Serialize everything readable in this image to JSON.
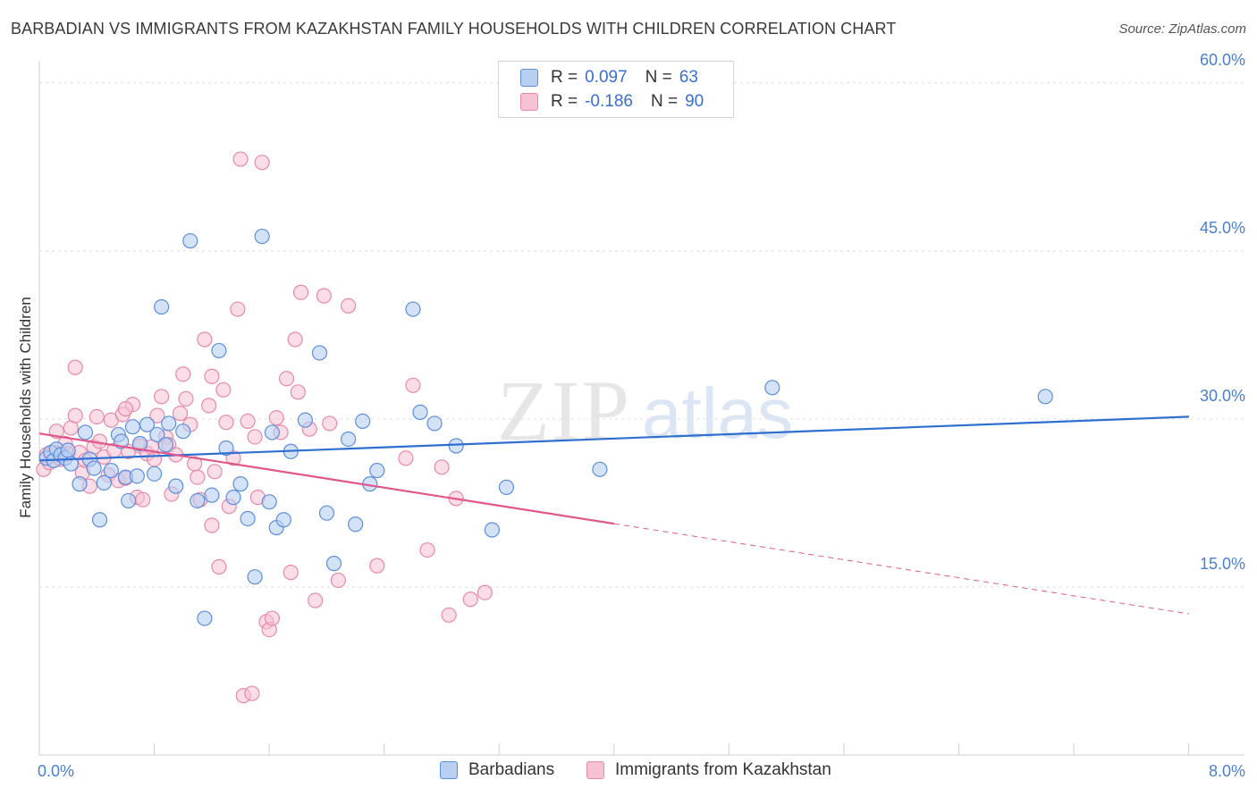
{
  "title": "BARBADIAN VS IMMIGRANTS FROM KAZAKHSTAN FAMILY HOUSEHOLDS WITH CHILDREN CORRELATION CHART",
  "source": "Source: ZipAtlas.com",
  "watermark": {
    "zip": "ZIP",
    "atlas": "atlas"
  },
  "legend": {
    "barbadian": {
      "r_label": "R = ",
      "r_value": "0.097",
      "n_label": "N = ",
      "n_value": "63"
    },
    "kazakhstan": {
      "r_label": "R = ",
      "r_value": "-0.186",
      "n_label": "N = ",
      "n_value": "90"
    }
  },
  "chart_data": {
    "type": "scatter",
    "title": "BARBADIAN VS IMMIGRANTS FROM KAZAKHSTAN FAMILY HOUSEHOLDS WITH CHILDREN CORRELATION CHART",
    "xlabel": "",
    "ylabel": "Family Households with Children",
    "xlim": [
      0,
      8
    ],
    "ylim": [
      0,
      61.5
    ],
    "x_tick_labels": [
      "0.0%",
      "8.0%"
    ],
    "y_ticks": [
      15,
      30,
      45,
      60
    ],
    "y_tick_labels": [
      "15.0%",
      "30.0%",
      "45.0%",
      "60.0%"
    ],
    "grid": true,
    "colors": {
      "barbadian_fill": "#b8cff2",
      "barbadian_stroke": "#5b8fdc",
      "barbadian_line": "#2f6fd0",
      "kazakhstan_fill": "#f6c1d3",
      "kazakhstan_stroke": "#e889aa",
      "kazakhstan_line": "#e0588a"
    },
    "series": [
      {
        "name": "Barbadians",
        "trend": {
          "x": [
            0,
            8
          ],
          "y": [
            26.3,
            30.2
          ],
          "dashed_from": null
        },
        "points": [
          [
            0.05,
            26.5
          ],
          [
            0.08,
            27.0
          ],
          [
            0.1,
            26.3
          ],
          [
            0.12,
            27.3
          ],
          [
            0.15,
            26.8
          ],
          [
            0.18,
            26.5
          ],
          [
            0.2,
            27.2
          ],
          [
            0.22,
            26.0
          ],
          [
            0.28,
            24.2
          ],
          [
            0.32,
            28.8
          ],
          [
            0.35,
            26.4
          ],
          [
            0.38,
            25.6
          ],
          [
            0.42,
            21.0
          ],
          [
            0.45,
            24.3
          ],
          [
            0.5,
            25.4
          ],
          [
            0.55,
            28.6
          ],
          [
            0.57,
            28.0
          ],
          [
            0.6,
            24.8
          ],
          [
            0.62,
            22.7
          ],
          [
            0.65,
            29.3
          ],
          [
            0.68,
            24.9
          ],
          [
            0.7,
            27.8
          ],
          [
            0.75,
            29.5
          ],
          [
            0.8,
            25.1
          ],
          [
            0.82,
            28.6
          ],
          [
            0.85,
            40.0
          ],
          [
            0.88,
            27.7
          ],
          [
            0.9,
            29.6
          ],
          [
            0.95,
            24.0
          ],
          [
            1.0,
            28.9
          ],
          [
            1.05,
            45.9
          ],
          [
            1.1,
            22.7
          ],
          [
            1.15,
            12.2
          ],
          [
            1.2,
            23.2
          ],
          [
            1.25,
            36.1
          ],
          [
            1.3,
            27.4
          ],
          [
            1.35,
            23.0
          ],
          [
            1.4,
            24.2
          ],
          [
            1.45,
            21.1
          ],
          [
            1.5,
            15.9
          ],
          [
            1.55,
            46.3
          ],
          [
            1.6,
            22.6
          ],
          [
            1.62,
            28.8
          ],
          [
            1.65,
            20.3
          ],
          [
            1.7,
            21.0
          ],
          [
            1.75,
            27.1
          ],
          [
            1.85,
            29.9
          ],
          [
            1.95,
            35.9
          ],
          [
            2.0,
            21.6
          ],
          [
            2.05,
            17.1
          ],
          [
            2.15,
            28.2
          ],
          [
            2.2,
            20.6
          ],
          [
            2.25,
            29.8
          ],
          [
            2.3,
            24.2
          ],
          [
            2.35,
            25.4
          ],
          [
            2.6,
            39.8
          ],
          [
            2.65,
            30.6
          ],
          [
            2.75,
            29.6
          ],
          [
            2.9,
            27.6
          ],
          [
            3.15,
            20.1
          ],
          [
            3.25,
            23.9
          ],
          [
            3.9,
            25.5
          ],
          [
            5.1,
            32.8
          ],
          [
            7.0,
            32.0
          ]
        ]
      },
      {
        "name": "Immigrants from Kazakhstan",
        "trend": {
          "x": [
            0,
            8
          ],
          "y": [
            28.7,
            12.6
          ],
          "dashed_from": 4.0
        },
        "points": [
          [
            0.03,
            25.5
          ],
          [
            0.05,
            26.8
          ],
          [
            0.07,
            26.1
          ],
          [
            0.1,
            27.0
          ],
          [
            0.12,
            28.9
          ],
          [
            0.15,
            26.4
          ],
          [
            0.18,
            27.8
          ],
          [
            0.2,
            26.9
          ],
          [
            0.22,
            29.2
          ],
          [
            0.25,
            30.3
          ],
          [
            0.28,
            27.0
          ],
          [
            0.3,
            25.2
          ],
          [
            0.32,
            26.3
          ],
          [
            0.35,
            24.0
          ],
          [
            0.38,
            27.5
          ],
          [
            0.4,
            30.2
          ],
          [
            0.42,
            28.0
          ],
          [
            0.45,
            26.6
          ],
          [
            0.48,
            25.0
          ],
          [
            0.5,
            29.9
          ],
          [
            0.52,
            27.2
          ],
          [
            0.55,
            24.5
          ],
          [
            0.58,
            30.4
          ],
          [
            0.6,
            24.7
          ],
          [
            0.62,
            27.1
          ],
          [
            0.65,
            31.3
          ],
          [
            0.68,
            23.0
          ],
          [
            0.7,
            27.6
          ],
          [
            0.72,
            22.8
          ],
          [
            0.75,
            26.9
          ],
          [
            0.78,
            27.5
          ],
          [
            0.8,
            26.4
          ],
          [
            0.82,
            30.3
          ],
          [
            0.85,
            32.0
          ],
          [
            0.88,
            28.4
          ],
          [
            0.9,
            27.7
          ],
          [
            0.92,
            23.3
          ],
          [
            0.95,
            26.8
          ],
          [
            0.98,
            30.5
          ],
          [
            1.0,
            34.0
          ],
          [
            1.02,
            31.8
          ],
          [
            1.05,
            29.5
          ],
          [
            1.08,
            26.0
          ],
          [
            1.1,
            24.8
          ],
          [
            1.12,
            22.8
          ],
          [
            1.15,
            37.1
          ],
          [
            1.18,
            31.2
          ],
          [
            1.2,
            20.5
          ],
          [
            1.22,
            25.3
          ],
          [
            1.25,
            16.8
          ],
          [
            1.28,
            32.6
          ],
          [
            1.3,
            29.7
          ],
          [
            1.32,
            22.2
          ],
          [
            1.35,
            26.5
          ],
          [
            1.38,
            39.8
          ],
          [
            1.4,
            53.2
          ],
          [
            1.42,
            5.3
          ],
          [
            1.45,
            29.8
          ],
          [
            1.48,
            5.5
          ],
          [
            1.5,
            28.4
          ],
          [
            1.52,
            23.0
          ],
          [
            1.55,
            52.9
          ],
          [
            1.58,
            11.9
          ],
          [
            1.6,
            11.2
          ],
          [
            1.62,
            12.2
          ],
          [
            1.65,
            30.1
          ],
          [
            1.68,
            28.8
          ],
          [
            1.72,
            33.6
          ],
          [
            1.75,
            16.3
          ],
          [
            1.78,
            37.1
          ],
          [
            1.8,
            32.4
          ],
          [
            1.82,
            41.3
          ],
          [
            1.88,
            29.1
          ],
          [
            1.92,
            13.8
          ],
          [
            1.98,
            41.0
          ],
          [
            2.02,
            29.6
          ],
          [
            2.08,
            15.6
          ],
          [
            2.15,
            40.1
          ],
          [
            2.35,
            16.9
          ],
          [
            2.55,
            26.5
          ],
          [
            2.6,
            33.0
          ],
          [
            2.7,
            18.3
          ],
          [
            2.8,
            25.7
          ],
          [
            2.85,
            12.5
          ],
          [
            2.9,
            22.9
          ],
          [
            3.0,
            13.9
          ],
          [
            3.1,
            14.5
          ],
          [
            0.6,
            30.9
          ],
          [
            1.2,
            33.8
          ],
          [
            0.25,
            34.6
          ]
        ]
      }
    ]
  },
  "bottom_legend": {
    "barbadians": "Barbadians",
    "kazakhstan": "Immigrants from Kazakhstan"
  }
}
